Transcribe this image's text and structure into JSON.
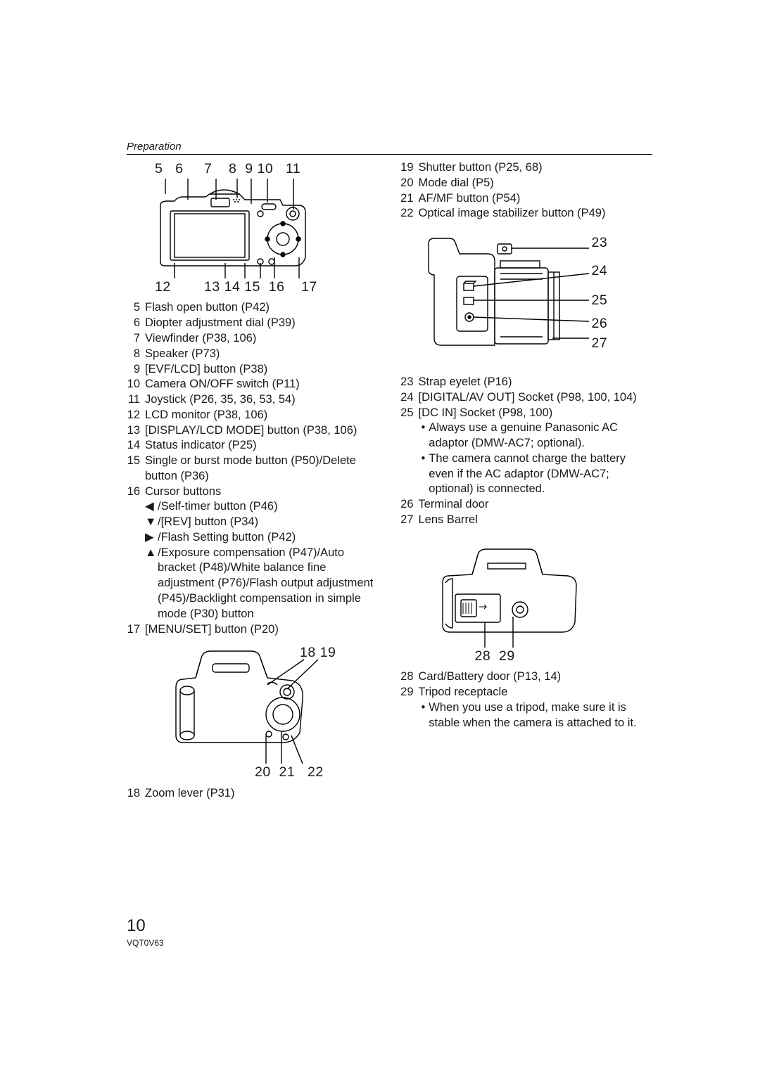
{
  "header": "Preparation",
  "page_number": "10",
  "doc_code": "VQT0V63",
  "diagram_back": {
    "top_labels": "5   6     7    8  9 10   11",
    "bottom_labels": "12        13 14 15  16    17"
  },
  "diagram_top": {
    "tr_labels": "18 19",
    "br_labels": "20  21   22"
  },
  "diagram_side": {
    "labels": [
      "23",
      "24",
      "25",
      "26",
      "27"
    ]
  },
  "diagram_bottom": {
    "labels": "28  29"
  },
  "left_items_a": [
    {
      "n": "5",
      "t": "Flash open button (P42)"
    },
    {
      "n": "6",
      "t": "Diopter adjustment dial (P39)"
    },
    {
      "n": "7",
      "t": "Viewfinder (P38, 106)"
    },
    {
      "n": "8",
      "t": "Speaker (P73)"
    },
    {
      "n": "9",
      "t": "[EVF/LCD] button (P38)"
    },
    {
      "n": "10",
      "t": "Camera ON/OFF switch (P11)"
    },
    {
      "n": "11",
      "t": "Joystick (P26, 35, 36, 53, 54)"
    },
    {
      "n": "12",
      "t": "LCD monitor (P38, 106)"
    },
    {
      "n": "13",
      "t": "[DISPLAY/LCD MODE] button (P38, 106)"
    },
    {
      "n": "14",
      "t": "Status indicator (P25)"
    },
    {
      "n": "15",
      "t": "Single or burst mode button (P50)/Delete button (P36)"
    }
  ],
  "item16": {
    "n": "16",
    "t": "Cursor buttons"
  },
  "item16_arrows": [
    {
      "arrow": "left",
      "t": "/Self-timer button (P46)"
    },
    {
      "arrow": "down",
      "t": "/[REV] button (P34)"
    },
    {
      "arrow": "right",
      "t": "/Flash Setting button (P42)"
    },
    {
      "arrow": "up",
      "t": "/Exposure compensation (P47)/Auto bracket (P48)/White balance fine adjustment (P76)/Flash output adjustment (P45)/Backlight compensation in simple mode (P30) button"
    }
  ],
  "item17": {
    "n": "17",
    "t": "[MENU/SET] button (P20)"
  },
  "item18": {
    "n": "18",
    "t": "Zoom lever (P31)"
  },
  "right_items_a": [
    {
      "n": "19",
      "t": "Shutter button (P25, 68)"
    },
    {
      "n": "20",
      "t": "Mode dial (P5)"
    },
    {
      "n": "21",
      "t": "AF/MF button (P54)"
    },
    {
      "n": "22",
      "t": "Optical image stabilizer button (P49)"
    }
  ],
  "right_items_b": [
    {
      "n": "23",
      "t": "Strap eyelet (P16)"
    },
    {
      "n": "24",
      "t": "[DIGITAL/AV OUT] Socket (P98, 100, 104)"
    }
  ],
  "item25": {
    "n": "25",
    "t": "[DC IN] Socket (P98, 100)"
  },
  "item25_bullets": [
    "Always use a genuine Panasonic AC adaptor (DMW-AC7; optional).",
    "The camera cannot charge the battery even if the AC adaptor (DMW-AC7; optional) is connected."
  ],
  "right_items_c": [
    {
      "n": "26",
      "t": "Terminal door"
    },
    {
      "n": "27",
      "t": "Lens Barrel"
    }
  ],
  "item28": {
    "n": "28",
    "t": "Card/Battery door (P13, 14)"
  },
  "item29": {
    "n": "29",
    "t": "Tripod receptacle"
  },
  "item29_bullets": [
    "When you use a tripod, make sure it is stable when the camera is attached to it."
  ],
  "arrows": {
    "left": "◀",
    "right": "▶",
    "up": "▲",
    "down": "▼"
  }
}
